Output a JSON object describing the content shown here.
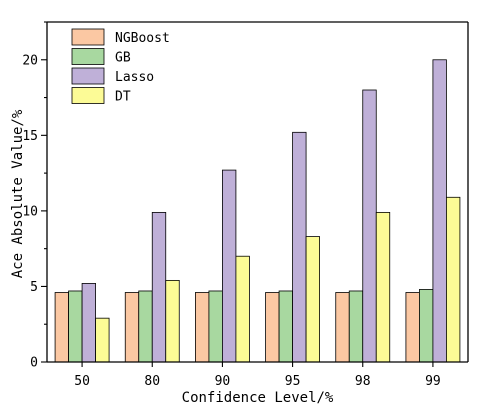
{
  "chart_data": {
    "type": "bar",
    "categories": [
      "50",
      "80",
      "90",
      "95",
      "98",
      "99"
    ],
    "series": [
      {
        "name": "NGBoost",
        "color": "#FBC8A3",
        "values": [
          4.6,
          4.6,
          4.6,
          4.6,
          4.6,
          4.6
        ]
      },
      {
        "name": "GB",
        "color": "#A8D8A0",
        "values": [
          4.7,
          4.7,
          4.7,
          4.7,
          4.7,
          4.8
        ]
      },
      {
        "name": "Lasso",
        "color": "#BFB0D8",
        "values": [
          5.2,
          9.9,
          12.7,
          15.2,
          18.0,
          20.0
        ]
      },
      {
        "name": "DT",
        "color": "#FCFB96",
        "values": [
          2.9,
          5.4,
          7.0,
          8.3,
          9.9,
          10.9
        ]
      }
    ],
    "xlabel": "Confidence Level/%",
    "ylabel": "Ace Absolute Value/%",
    "ylim": [
      0,
      22.5
    ],
    "yticks": [
      0,
      5,
      10,
      15,
      20
    ],
    "grid": false,
    "legend_position": "top-left"
  }
}
